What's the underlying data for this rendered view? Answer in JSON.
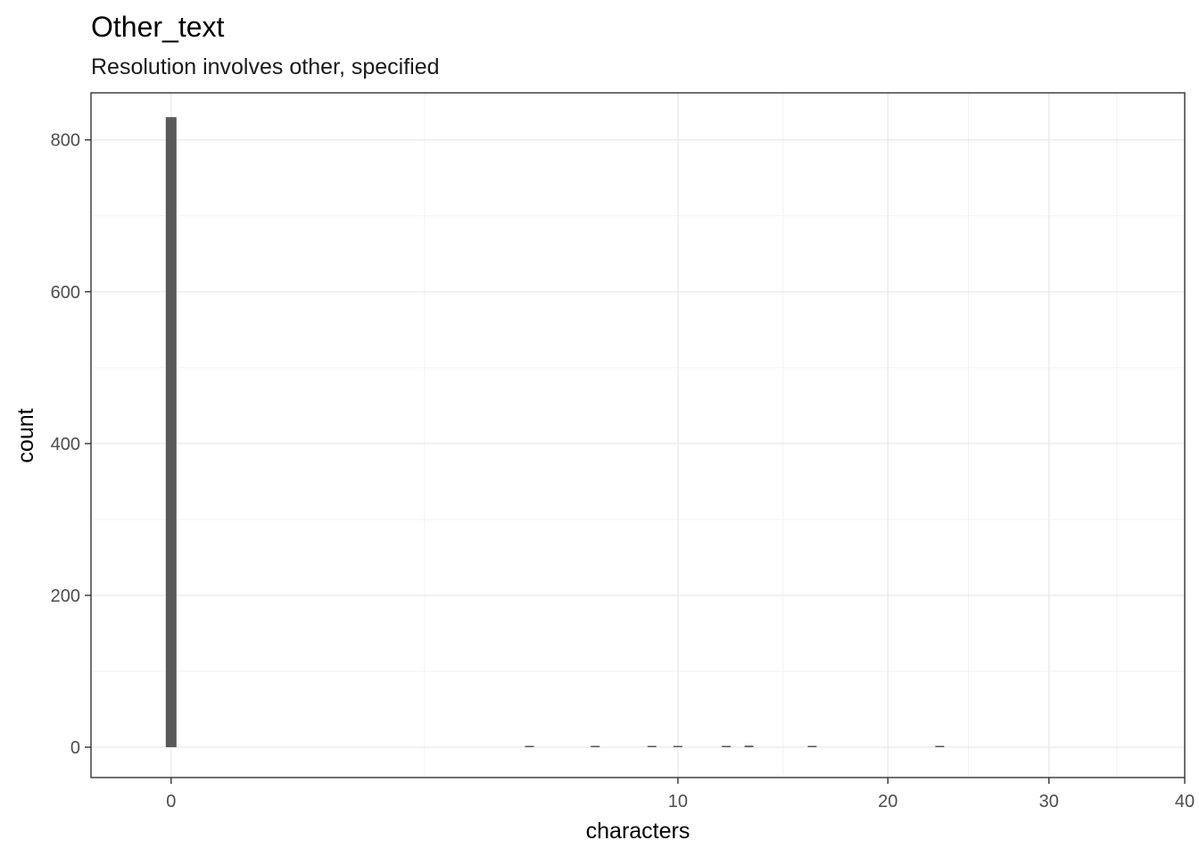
{
  "chart_data": {
    "type": "bar",
    "title": "Other_text",
    "subtitle": "Resolution involves other, specified",
    "xlabel": "characters",
    "ylabel": "count",
    "x_scale": "sqrt",
    "xlim": [
      -0.25,
      40
    ],
    "ylim": [
      -40,
      862
    ],
    "x_ticks": [
      0,
      10,
      20,
      30,
      40
    ],
    "y_ticks": [
      0,
      200,
      400,
      600,
      800
    ],
    "grid": true,
    "bar_color": "#595959",
    "bars": [
      {
        "x": 0,
        "count": 830
      },
      {
        "x": 5,
        "count": 1
      },
      {
        "x": 7,
        "count": 1
      },
      {
        "x": 9,
        "count": 1
      },
      {
        "x": 10,
        "count": 1
      },
      {
        "x": 12,
        "count": 1
      },
      {
        "x": 13,
        "count": 2
      },
      {
        "x": 16,
        "count": 1
      },
      {
        "x": 23,
        "count": 1
      }
    ]
  }
}
